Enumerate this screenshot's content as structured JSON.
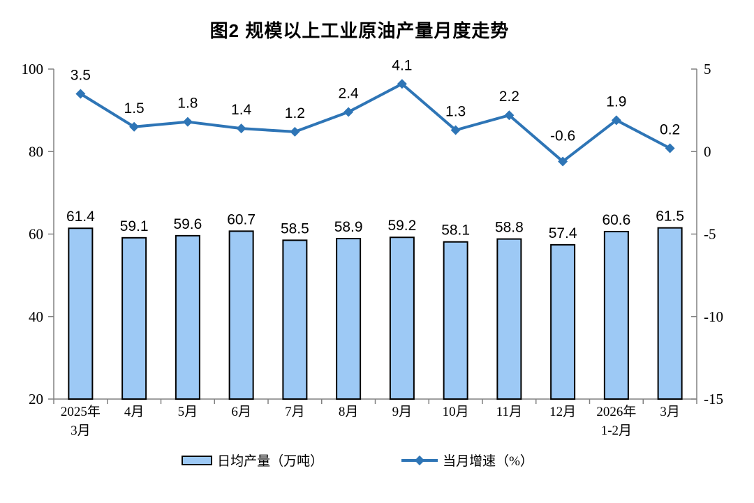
{
  "title": "图2 规模以上工业原油产量月度走势",
  "chart_data": {
    "type": "bar",
    "subtype": "bar+line combo, dual y-axes",
    "categories": [
      [
        "2025年",
        "3月"
      ],
      [
        "4月"
      ],
      [
        "5月"
      ],
      [
        "6月"
      ],
      [
        "7月"
      ],
      [
        "8月"
      ],
      [
        "9月"
      ],
      [
        "10月"
      ],
      [
        "11月"
      ],
      [
        "12月"
      ],
      [
        "2026年",
        "1-2月"
      ],
      [
        "3月"
      ]
    ],
    "series": [
      {
        "name": "日均产量（万吨）",
        "type": "bar",
        "axis": "left",
        "color": "#9DC9F5",
        "border_color": "#000000",
        "values": [
          61.4,
          59.1,
          59.6,
          60.7,
          58.5,
          58.9,
          59.2,
          58.1,
          58.8,
          57.4,
          60.6,
          61.5
        ]
      },
      {
        "name": "当月增速（%）",
        "type": "line",
        "axis": "right",
        "color": "#2E75B6",
        "marker": "diamond",
        "values": [
          3.5,
          1.5,
          1.8,
          1.4,
          1.2,
          2.4,
          4.1,
          1.3,
          2.2,
          -0.6,
          1.9,
          0.2
        ]
      }
    ],
    "left_axis": {
      "min": 20,
      "max": 100,
      "ticks": [
        20,
        40,
        60,
        80,
        100
      ]
    },
    "right_axis": {
      "min": -15,
      "max": 5,
      "ticks": [
        -15,
        -10,
        -5,
        0,
        5
      ]
    },
    "grid": false,
    "legend_position": "bottom",
    "axis_color": "#808080"
  }
}
